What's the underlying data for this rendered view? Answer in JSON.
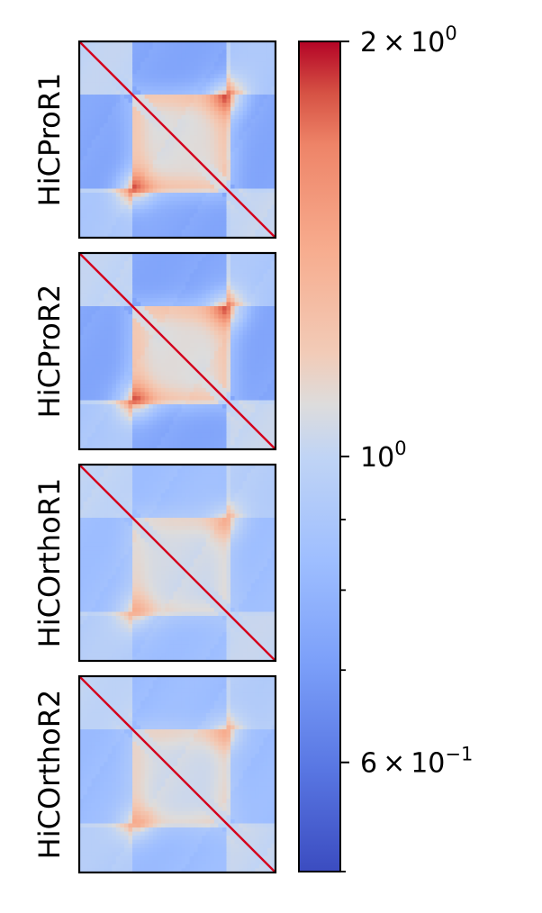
{
  "chart_data": {
    "type": "heatmap",
    "panels": [
      {
        "label": "HiCProR1",
        "strength": 1.0
      },
      {
        "label": "HiCProR2",
        "strength": 1.0
      },
      {
        "label": "HiCOrthoR1",
        "strength": 0.55
      },
      {
        "label": "HiCOrthoR2",
        "strength": 0.6
      }
    ],
    "colormap": "coolwarm",
    "colorbar": {
      "scale": "log",
      "vmin": 0.5,
      "vmax": 2,
      "major_ticks": [
        {
          "value": 2,
          "mantissa": "2",
          "exponent": "0"
        },
        {
          "value": 1,
          "mantissa": "",
          "exponent": "0"
        },
        {
          "value": 0.6,
          "mantissa": "6",
          "exponent": "−1"
        }
      ],
      "minor_ticks": [
        0.9,
        0.8,
        0.7,
        0.5
      ]
    }
  }
}
